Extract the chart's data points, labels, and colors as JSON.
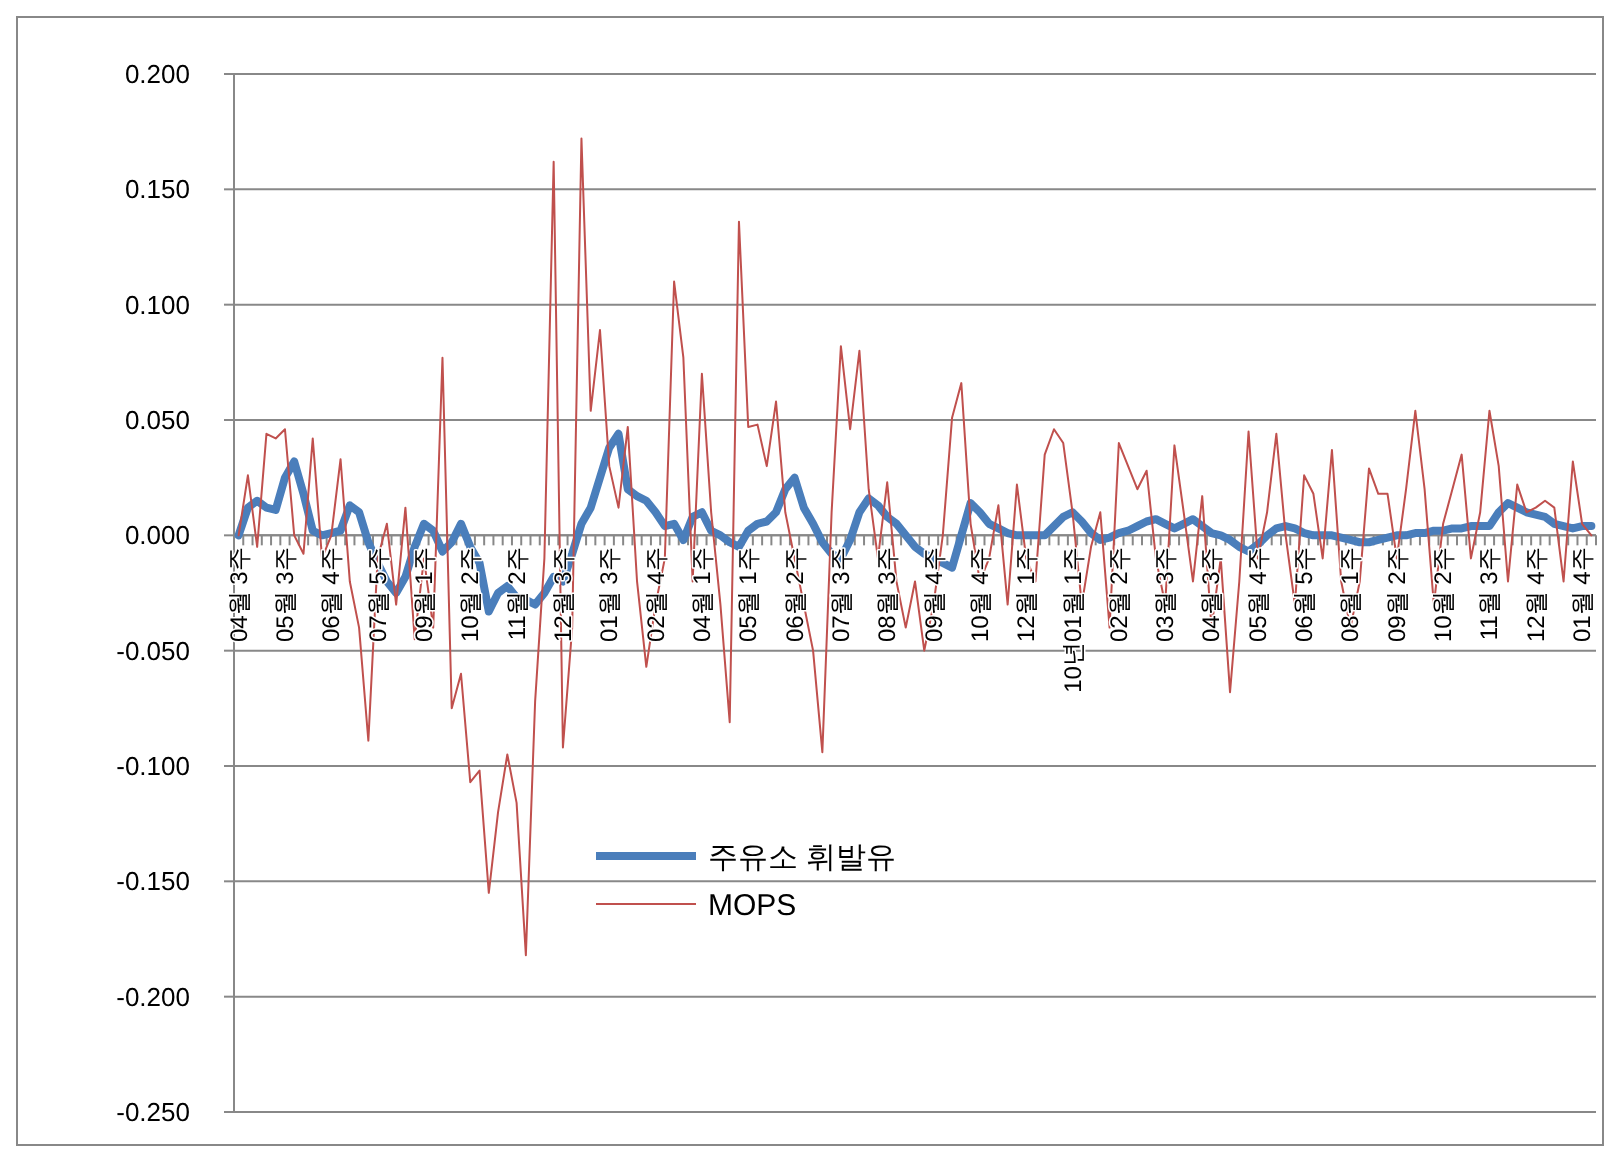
{
  "chart_data": {
    "type": "line",
    "categories": [
      "04월 3주",
      null,
      null,
      null,
      null,
      "05월 3주",
      null,
      null,
      null,
      null,
      "06월 4주",
      null,
      null,
      null,
      null,
      "07월 5주",
      null,
      null,
      null,
      null,
      "09월 1주",
      null,
      null,
      null,
      null,
      "10월 2주",
      null,
      null,
      null,
      null,
      "11월 2주",
      null,
      null,
      null,
      null,
      "12월 3주",
      null,
      null,
      null,
      null,
      "01월 3주",
      null,
      null,
      null,
      null,
      "02월 4주",
      null,
      null,
      null,
      null,
      "04월 1주",
      null,
      null,
      null,
      null,
      "05월 1주",
      null,
      null,
      null,
      null,
      "06월 2주",
      null,
      null,
      null,
      null,
      "07월 3주",
      null,
      null,
      null,
      null,
      "08월 3주",
      null,
      null,
      null,
      null,
      "09월 4주",
      null,
      null,
      null,
      null,
      "10월 4주",
      null,
      null,
      null,
      null,
      "12월 1주",
      null,
      null,
      null,
      null,
      "10년01월 1주",
      null,
      null,
      null,
      null,
      "02월 2주",
      null,
      null,
      null,
      null,
      "03월 3주",
      null,
      null,
      null,
      null,
      "04월 3주",
      null,
      null,
      null,
      null,
      "05월 4주",
      null,
      null,
      null,
      null,
      "06월 5주",
      null,
      null,
      null,
      null,
      "08월 1주",
      null,
      null,
      null,
      null,
      "09월 2주",
      null,
      null,
      null,
      null,
      "10월 2주",
      null,
      null,
      null,
      null,
      "11월 3주",
      null,
      null,
      null,
      null,
      "12월 4주",
      null,
      null,
      null,
      null,
      "01월 4주",
      null
    ],
    "series": [
      {
        "name": "주유소 휘발유",
        "color": "#4a7ebb",
        "values": [
          0.0,
          0.012,
          0.015,
          0.012,
          0.011,
          0.025,
          0.032,
          0.018,
          0.002,
          0.0,
          0.001,
          0.002,
          0.013,
          0.01,
          -0.003,
          -0.012,
          -0.02,
          -0.025,
          -0.018,
          -0.005,
          0.005,
          0.002,
          -0.007,
          -0.003,
          0.005,
          -0.005,
          -0.012,
          -0.033,
          -0.025,
          -0.022,
          -0.027,
          -0.028,
          -0.03,
          -0.025,
          -0.018,
          -0.02,
          -0.008,
          0.005,
          0.012,
          0.025,
          0.038,
          0.044,
          0.02,
          0.017,
          0.015,
          0.01,
          0.004,
          0.005,
          -0.002,
          0.008,
          0.01,
          0.002,
          0.0,
          -0.003,
          -0.005,
          0.002,
          0.005,
          0.006,
          0.01,
          0.02,
          0.025,
          0.012,
          0.005,
          -0.003,
          -0.008,
          -0.01,
          -0.002,
          0.01,
          0.016,
          0.013,
          0.008,
          0.005,
          0.0,
          -0.005,
          -0.008,
          -0.01,
          -0.012,
          -0.014,
          0.0,
          0.014,
          0.01,
          0.005,
          0.003,
          0.001,
          0.0,
          0.0,
          0.0,
          0.0,
          0.004,
          0.008,
          0.01,
          0.006,
          0.001,
          -0.002,
          -0.001,
          0.001,
          0.002,
          0.004,
          0.006,
          0.007,
          0.005,
          0.003,
          0.005,
          0.007,
          0.004,
          0.001,
          0.0,
          -0.002,
          -0.005,
          -0.007,
          -0.004,
          0.0,
          0.003,
          0.004,
          0.003,
          0.001,
          0.0,
          0.0,
          0.0,
          -0.001,
          -0.002,
          -0.003,
          -0.003,
          -0.002,
          -0.001,
          0.0,
          0.0,
          0.001,
          0.001,
          0.002,
          0.002,
          0.003,
          0.003,
          0.004,
          0.004,
          0.004,
          0.01,
          0.014,
          0.012,
          0.01,
          0.009,
          0.008,
          0.005,
          0.004,
          0.003,
          0.004,
          0.004
        ]
      },
      {
        "name": "MOPS",
        "color": "#c0504d",
        "values": [
          0.0,
          0.026,
          -0.005,
          0.044,
          0.042,
          0.046,
          0.0,
          -0.008,
          0.042,
          -0.01,
          0.0,
          0.033,
          -0.02,
          -0.04,
          -0.089,
          -0.01,
          0.005,
          -0.03,
          0.012,
          -0.045,
          -0.01,
          -0.04,
          0.077,
          -0.075,
          -0.06,
          -0.107,
          -0.102,
          -0.155,
          -0.12,
          -0.095,
          -0.116,
          -0.182,
          -0.072,
          -0.01,
          0.162,
          -0.092,
          -0.04,
          0.172,
          0.054,
          0.089,
          0.03,
          0.012,
          0.047,
          -0.02,
          -0.057,
          -0.03,
          -0.01,
          0.11,
          0.077,
          -0.02,
          0.07,
          0.01,
          -0.03,
          -0.081,
          0.136,
          0.047,
          0.048,
          0.03,
          0.058,
          0.01,
          -0.01,
          -0.03,
          -0.05,
          -0.094,
          0.01,
          0.082,
          0.046,
          0.08,
          0.02,
          -0.01,
          0.023,
          -0.02,
          -0.04,
          -0.02,
          -0.05,
          -0.03,
          0.0,
          0.051,
          0.066,
          0.005,
          -0.02,
          -0.01,
          0.013,
          -0.03,
          0.022,
          -0.01,
          -0.02,
          0.035,
          0.046,
          0.04,
          0.01,
          -0.03,
          -0.005,
          0.01,
          -0.04,
          0.04,
          0.03,
          0.02,
          0.028,
          -0.01,
          -0.03,
          0.039,
          0.01,
          -0.02,
          0.017,
          -0.04,
          -0.01,
          -0.068,
          -0.02,
          0.045,
          -0.01,
          0.01,
          0.044,
          0.0,
          -0.03,
          0.026,
          0.018,
          -0.01,
          0.037,
          -0.02,
          -0.04,
          -0.02,
          0.029,
          0.018,
          0.018,
          -0.01,
          0.02,
          0.054,
          0.02,
          -0.03,
          0.005,
          0.02,
          0.035,
          -0.01,
          0.01,
          0.054,
          0.03,
          -0.02,
          0.022,
          0.01,
          0.012,
          0.015,
          0.012,
          -0.02,
          0.032,
          0.005,
          0.0
        ]
      }
    ],
    "ylim": [
      -0.25,
      0.2
    ],
    "yticks": [
      {
        "value": -0.25,
        "label": "-0.250"
      },
      {
        "value": -0.2,
        "label": "-0.200"
      },
      {
        "value": -0.15,
        "label": "-0.150"
      },
      {
        "value": -0.1,
        "label": "-0.100"
      },
      {
        "value": -0.05,
        "label": "-0.050"
      },
      {
        "value": 0,
        "label": "0.000"
      },
      {
        "value": 0.05,
        "label": "0.050"
      },
      {
        "value": 0.1,
        "label": "0.100"
      },
      {
        "value": 0.15,
        "label": "0.150"
      },
      {
        "value": 0.2,
        "label": "0.200"
      }
    ],
    "grid": "y",
    "legend": "bottom",
    "marker": "none"
  }
}
